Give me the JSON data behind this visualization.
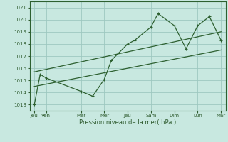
{
  "background_color": "#c8e8e0",
  "grid_color": "#9ec8c0",
  "line_color": "#2d6030",
  "ylabel": "Pression niveau de la mer( hPa )",
  "ylim": [
    1012.5,
    1021.5
  ],
  "yticks": [
    1013,
    1014,
    1015,
    1016,
    1017,
    1018,
    1019,
    1020,
    1021
  ],
  "xlim": [
    -0.2,
    8.2
  ],
  "xtick_positions": [
    0,
    0.5,
    2,
    3,
    4,
    5,
    6,
    7,
    8
  ],
  "xtick_labels": [
    "Jeu",
    "Ven",
    "Mar",
    "Mer",
    "Jeu",
    "Sam",
    "Dim",
    "Lun",
    "Mar"
  ],
  "main_series_x": [
    0,
    0.25,
    0.5,
    2.0,
    2.5,
    3.0,
    3.3,
    4.0,
    4.3,
    5.0,
    5.3,
    6.0,
    6.5,
    7.0,
    7.5,
    8.0
  ],
  "main_series_y": [
    1013.0,
    1015.5,
    1015.2,
    1014.1,
    1013.7,
    1015.1,
    1016.65,
    1018.0,
    1018.3,
    1019.4,
    1020.5,
    1019.5,
    1017.6,
    1019.5,
    1020.25,
    1018.3
  ],
  "trend_line1_x": [
    0,
    8
  ],
  "trend_line1_y": [
    1015.7,
    1019.0
  ],
  "trend_line2_x": [
    0,
    8
  ],
  "trend_line2_y": [
    1014.5,
    1017.5
  ],
  "marker_x": [
    0,
    0.5,
    2.0,
    2.5,
    3.0,
    3.3,
    4.0,
    4.3,
    5.0,
    5.3,
    6.0,
    6.5,
    7.0,
    7.5,
    8.0
  ],
  "marker_y": [
    1013.0,
    1015.2,
    1014.1,
    1013.7,
    1015.1,
    1016.65,
    1018.0,
    1018.3,
    1019.4,
    1020.5,
    1019.5,
    1017.6,
    1019.5,
    1020.25,
    1018.3
  ]
}
